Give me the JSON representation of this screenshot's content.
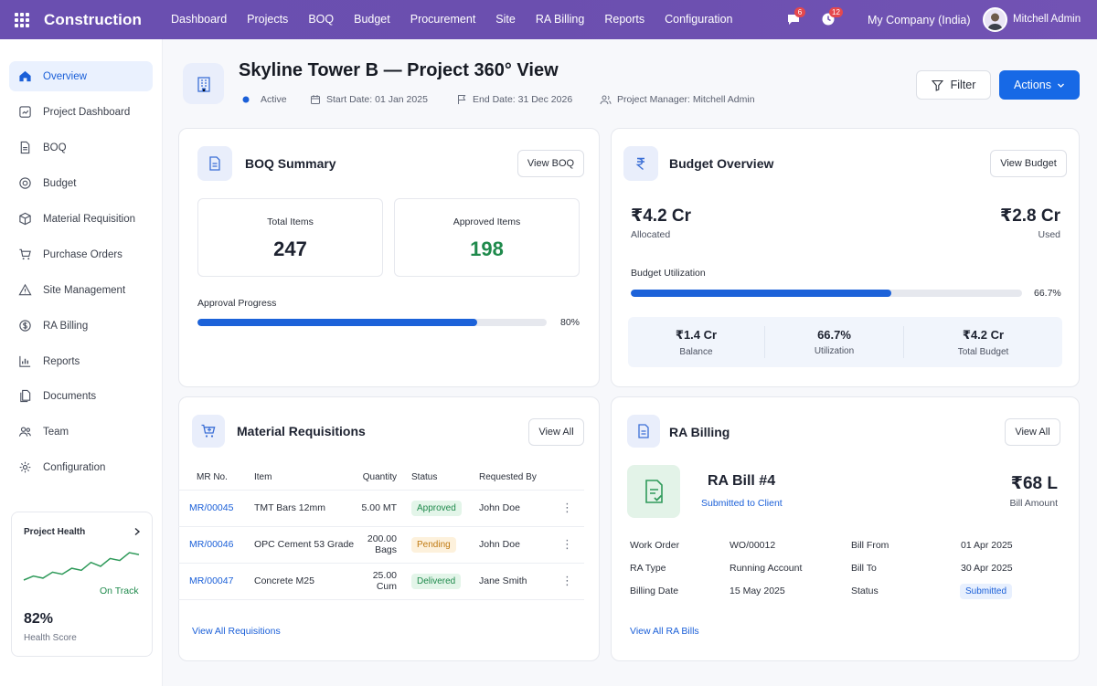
{
  "app": {
    "brand": "Construction",
    "nav": [
      "Dashboard",
      "Projects",
      "BOQ",
      "Budget",
      "Procurement",
      "Site",
      "RA Billing",
      "Reports",
      "Configuration"
    ],
    "chat_badge": "6",
    "clock_badge": "12",
    "company": "My Company (India)",
    "user": "Mitchell Admin"
  },
  "sidebar": {
    "items": [
      {
        "label": "Overview",
        "icon": "home-icon"
      },
      {
        "label": "Project Dashboard",
        "icon": "dashboard-icon"
      },
      {
        "label": "BOQ",
        "icon": "document-list-icon"
      },
      {
        "label": "Budget",
        "icon": "coin-icon"
      },
      {
        "label": "Material Requisition",
        "icon": "box-icon"
      },
      {
        "label": "Purchase Orders",
        "icon": "cart-icon"
      },
      {
        "label": "Site Management",
        "icon": "warning-triangle-icon"
      },
      {
        "label": "RA Billing",
        "icon": "dollar-icon"
      },
      {
        "label": "Reports",
        "icon": "chart-icon"
      },
      {
        "label": "Documents",
        "icon": "documents-icon"
      },
      {
        "label": "Team",
        "icon": "team-icon"
      },
      {
        "label": "Configuration",
        "icon": "gear-icon"
      }
    ],
    "health": {
      "title": "Project Health",
      "status": "On Track",
      "score": "82%",
      "score_label": "Health Score",
      "trend": [
        4,
        6,
        5,
        8,
        7,
        10,
        9,
        13,
        11,
        15,
        14,
        18,
        17
      ]
    }
  },
  "header": {
    "title": "Skyline Tower B — Project 360° View",
    "status": "Active",
    "start": "Start Date: 01 Jan 2025",
    "end": "End Date: 31 Dec 2026",
    "manager": "Project Manager: Mitchell Admin",
    "filter_label": "Filter",
    "actions_label": "Actions"
  },
  "boq": {
    "title": "BOQ Summary",
    "button": "View BOQ",
    "total_label": "Total Items",
    "total_value": "247",
    "approved_label": "Approved Items",
    "approved_value": "198",
    "progress_label": "Approval Progress",
    "progress_text": "80%",
    "progress_fraction": 0.8,
    "accent": "#1f8a4c"
  },
  "budget": {
    "title": "Budget Overview",
    "button": "View Budget",
    "allocated_value": "₹4.2 Cr",
    "allocated_label": "Allocated",
    "used_value": "₹2.8 Cr",
    "used_label": "Used",
    "util_label": "Budget Utilization",
    "util_text": "66.7%",
    "util_fraction": 0.667,
    "stats": [
      {
        "value": "₹1.4 Cr",
        "label": "Balance"
      },
      {
        "value": "66.7%",
        "label": "Utilization"
      },
      {
        "value": "₹4.2 Cr",
        "label": "Total Budget"
      }
    ]
  },
  "mr": {
    "title": "Material Requisitions",
    "button": "View All",
    "columns": [
      "MR No.",
      "Item",
      "Quantity",
      "Status",
      "Requested By"
    ],
    "rows": [
      {
        "no": "MR/00045",
        "item": "TMT Bars 12mm",
        "qty": "5.00 MT",
        "status": "Approved",
        "by": "John Doe"
      },
      {
        "no": "MR/00046",
        "item": "OPC Cement 53 Grade",
        "qty": "200.00 Bags",
        "status": "Pending",
        "by": "John Doe"
      },
      {
        "no": "MR/00047",
        "item": "Concrete M25",
        "qty": "25.00 Cum",
        "status": "Delivered",
        "by": "Jane Smith"
      }
    ],
    "footer_link": "View All Requisitions"
  },
  "ra": {
    "title": "RA Billing",
    "button": "View All",
    "bill_title": "RA Bill #4",
    "bill_status": "Submitted to Client",
    "amount": "₹68 L",
    "amount_label": "Bill Amount",
    "fields": {
      "work_order_label": "Work Order",
      "work_order": "WO/00012",
      "bill_from_label": "Bill From",
      "bill_from": "01 Apr 2025",
      "ra_type_label": "RA Type",
      "ra_type": "Running Account",
      "bill_to_label": "Bill To",
      "bill_to": "30 Apr 2025",
      "billing_date_label": "Billing Date",
      "billing_date": "15 May 2025",
      "status_label": "Status",
      "status": "Submitted"
    },
    "footer_link": "View All RA Bills"
  }
}
